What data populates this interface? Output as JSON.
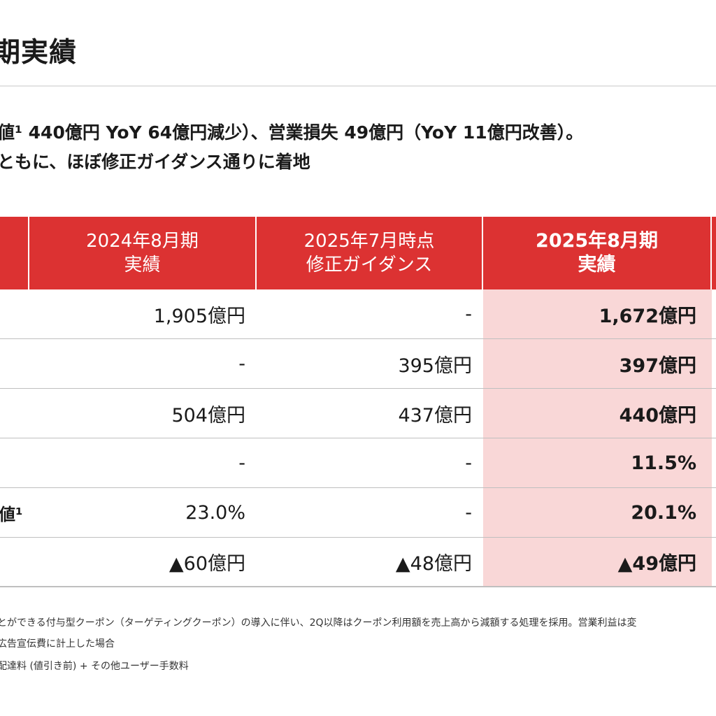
{
  "title": "期実績",
  "summary": {
    "line1": "値¹ 440億円 YoY 64億円減少）、営業損失 49億円（YoY 11億円改善）。",
    "line2": "ともに、ほぼ修正ガイダンス通りに着地"
  },
  "table": {
    "headers": [
      {
        "line1": "2024年8月期",
        "line2": "実績"
      },
      {
        "line1": "2025年7月時点",
        "line2": "修正ガイダンス"
      },
      {
        "line1": "2025年8月期",
        "line2": "実績"
      }
    ],
    "rows": [
      {
        "label": "",
        "values": [
          "1,905億円",
          "-",
          "1,672億円"
        ]
      },
      {
        "label": "",
        "values": [
          "-",
          "395億円",
          "397億円"
        ]
      },
      {
        "label": "",
        "values": [
          "504億円",
          "437億円",
          "440億円"
        ]
      },
      {
        "label": "",
        "values": [
          "-",
          "-",
          "11.5%"
        ]
      },
      {
        "label": "値¹",
        "values": [
          "23.0%",
          "-",
          "20.1%"
        ]
      },
      {
        "label": "",
        "values": [
          "▲60億円",
          "▲48億円",
          "▲49億円"
        ]
      }
    ]
  },
  "footnotes": [
    "とができる付与型クーポン（ターゲティングクーポン）の導入に伴い、2Q以降はクーポン利用額を売上高から減額する処理を採用。営業利益は変",
    "広告宣伝費に計上した場合",
    "配達料 (値引き前) + その他ユーザー手数料"
  ],
  "colors": {
    "header_red": "#dc3232",
    "highlight_pink": "#f9d7d7",
    "rule_gray": "#bfbfbf"
  }
}
